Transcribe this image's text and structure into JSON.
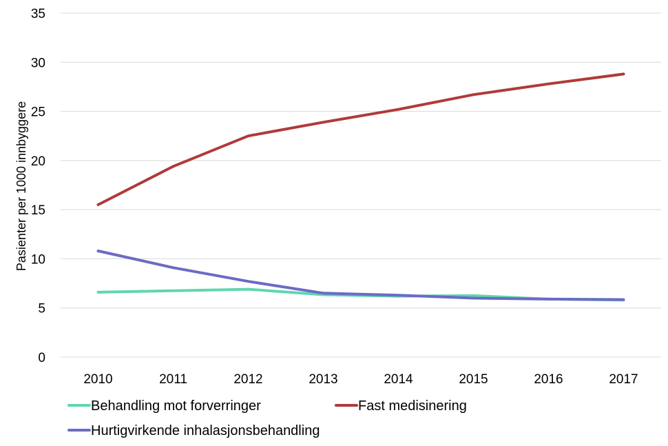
{
  "chart_data": {
    "type": "line",
    "title": "",
    "xlabel": "",
    "ylabel": "Pasienter per 1000 innbyggere",
    "ylim": [
      0,
      35
    ],
    "yticks": [
      0,
      5,
      10,
      15,
      20,
      25,
      30,
      35
    ],
    "grid": true,
    "legend_position": "bottom-left",
    "categories": [
      "2010",
      "2011",
      "2012",
      "2013",
      "2014",
      "2015",
      "2016",
      "2017"
    ],
    "series": [
      {
        "name": "Behandling mot forverringer",
        "color": "#5fd6b0",
        "values": [
          6.6,
          6.75,
          6.9,
          6.35,
          6.2,
          6.25,
          5.9,
          5.8
        ]
      },
      {
        "name": "Fast medisinering",
        "color": "#b03a3a",
        "values": [
          15.5,
          19.4,
          22.5,
          23.9,
          25.2,
          26.7,
          27.8,
          28.8
        ]
      },
      {
        "name": "Hurtigvirkende inhalasjonsbehandling",
        "color": "#6b6bc4",
        "values": [
          10.8,
          9.1,
          7.7,
          6.5,
          6.3,
          6.0,
          5.9,
          5.85
        ]
      }
    ]
  }
}
